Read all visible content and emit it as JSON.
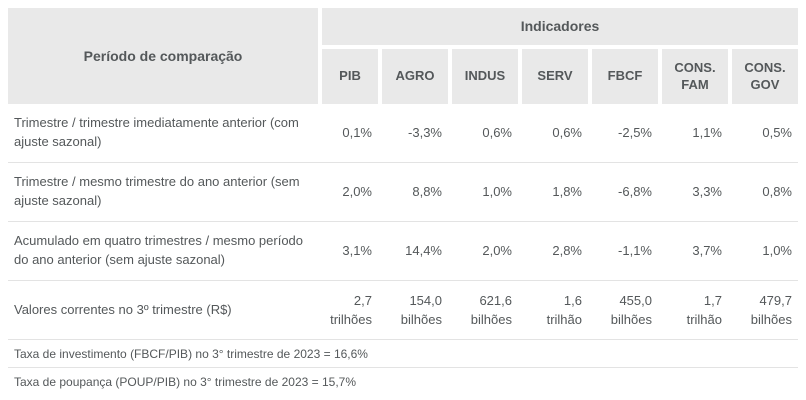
{
  "chart_data": {
    "type": "table",
    "title": "Indicadores por período de comparação",
    "corner_header": "Período de comparação",
    "group_header": "Indicadores",
    "columns": [
      "PIB",
      "AGRO",
      "INDUS",
      "SERV",
      "FBCF",
      "CONS. FAM",
      "CONS. GOV"
    ],
    "rows": [
      {
        "label": "Trimestre / trimestre imediatamente anterior (com ajuste sazonal)",
        "values": [
          "0,1%",
          "-3,3%",
          "0,6%",
          "0,6%",
          "-2,5%",
          "1,1%",
          "0,5%"
        ]
      },
      {
        "label": "Trimestre / mesmo trimestre do ano anterior (sem ajuste sazonal)",
        "values": [
          "2,0%",
          "8,8%",
          "1,0%",
          "1,8%",
          "-6,8%",
          "3,3%",
          "0,8%"
        ]
      },
      {
        "label": "Acumulado em quatro trimestres / mesmo período do ano anterior (sem ajuste sazonal)",
        "values": [
          "3,1%",
          "14,4%",
          "2,0%",
          "2,8%",
          "-1,1%",
          "3,7%",
          "1,0%"
        ]
      },
      {
        "label": "Valores correntes no 3º trimestre (R$)",
        "values": [
          {
            "v": "2,7",
            "unit": "trilhões"
          },
          {
            "v": "154,0",
            "unit": "bilhões"
          },
          {
            "v": "621,6",
            "unit": "bilhões"
          },
          {
            "v": "1,6",
            "unit": "trilhão"
          },
          {
            "v": "455,0",
            "unit": "bilhões"
          },
          {
            "v": "1,7",
            "unit": "trilhão"
          },
          {
            "v": "479,7",
            "unit": "bilhões"
          }
        ]
      }
    ],
    "footnotes": [
      "Taxa de investimento (FBCF/PIB) no 3° trimestre de 2023 = 16,6%",
      "Taxa de poupança (POUP/PIB) no  3° trimestre de 2023 = 15,7%"
    ],
    "colors": {
      "header_bg": "#e9e9e9",
      "text": "#54585a",
      "divider": "#e3e3e3"
    }
  }
}
